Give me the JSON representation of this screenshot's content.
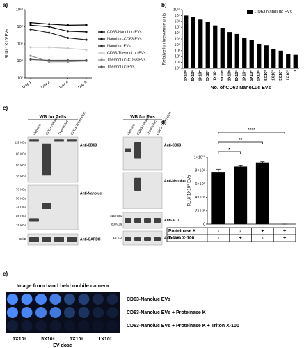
{
  "chart_data": [
    {
      "label": "a)",
      "type": "line",
      "y_label": "RLU/ 1X10⁸EVs",
      "log_scale": true,
      "ylim": [
        100,
        10000000000
      ],
      "yticks": [
        {
          "value": 100,
          "label": "10²"
        },
        {
          "value": 10000,
          "label": "10⁴"
        },
        {
          "value": 1000000,
          "label": "10⁶"
        },
        {
          "value": 100000000,
          "label": "10⁸"
        },
        {
          "value": 10000000000,
          "label": "10¹⁰"
        }
      ],
      "categories": [
        "Day 1",
        "Day 2",
        "Day 4",
        "Day 6"
      ],
      "series": [
        {
          "name": "CD63-NanoLuc EVs",
          "color": "#000000",
          "values": [
            300000000,
            200000000,
            150000000,
            160000000
          ]
        },
        {
          "name": "NanoLuc-CD63 EVs",
          "color": "#111111",
          "values": [
            150000000,
            100000000,
            30000000,
            25000000
          ]
        },
        {
          "name": "NanoLuc EVs",
          "color": "#222222",
          "values": [
            50000000,
            20000000,
            5000000,
            3000000
          ]
        },
        {
          "name": "CD63-ThermoLuc EVs",
          "color": "#c8c8c8",
          "values": [
            400000,
            400000,
            300000,
            200000
          ]
        },
        {
          "name": "ThermoLuc-CD63 EVs",
          "color": "#8c8c8c",
          "values": [
            40000,
            8000,
            8000,
            10000
          ]
        },
        {
          "name": "ThermoLuc EVs",
          "color": "#555555",
          "values": [
            15000,
            12000,
            12000,
            12000
          ]
        }
      ]
    },
    {
      "label": "b)",
      "type": "bar",
      "y_label": "Relative luminescence units",
      "x_label": "No. of CD63 NanoLuc EVs",
      "log_scale": true,
      "legend": "top-right",
      "ylim": [
        1,
        10000000000
      ],
      "yticks": [
        {
          "value": 1,
          "label": "10⁰"
        },
        {
          "value": 10,
          "label": "10¹"
        },
        {
          "value": 100,
          "label": "10²"
        },
        {
          "value": 1000,
          "label": "10³"
        },
        {
          "value": 10000,
          "label": "10⁴"
        },
        {
          "value": 100000,
          "label": "10⁵"
        },
        {
          "value": 1000000,
          "label": "10⁶"
        },
        {
          "value": 10000000,
          "label": "10⁷"
        },
        {
          "value": 100000000,
          "label": "10⁸"
        },
        {
          "value": 1000000000,
          "label": "10⁹"
        },
        {
          "value": 10000000000,
          "label": "10¹⁰"
        }
      ],
      "categories": [
        "1X10⁹",
        "5X10⁸",
        "1X10⁸",
        "5X10⁷",
        "1X10⁷",
        "5X10⁶",
        "1X10⁶",
        "5X10⁵",
        "1X10⁵",
        "5X10⁴",
        "1X10⁴",
        "5X10³",
        "1X10³",
        "5X10²",
        "1X10²",
        "0"
      ],
      "series": [
        {
          "name": "CD63 NanoLuc EVs",
          "color": "#000000",
          "values": [
            1000000000,
            600000000,
            200000000,
            80000000,
            20000000,
            8000000,
            1500000,
            700000,
            150000,
            70000,
            15000,
            8000,
            2000,
            1000,
            300,
            200
          ]
        }
      ]
    },
    {
      "label": "d)",
      "type": "bar",
      "y_label": "RLU/ 1X10⁸ EVs",
      "log_scale": false,
      "ylim": [
        0,
        10000000000
      ],
      "yticks": [
        0,
        {
          "value": 2000000000,
          "label": "2×10⁹"
        },
        {
          "value": 4000000000,
          "label": "4×10⁹"
        },
        {
          "value": 6000000000,
          "label": "6×10⁹"
        },
        {
          "value": 8000000000,
          "label": "8×10⁹"
        },
        {
          "value": 10000000000,
          "label": "1×10¹⁰"
        }
      ],
      "color": "#000000",
      "values": [
        7800000000,
        8600000000,
        9200000000,
        0
      ],
      "errors": [
        400000000,
        200000000,
        100000000,
        0
      ],
      "annotations": [
        "*",
        "**",
        "****"
      ],
      "table": [
        {
          "name": "Proteinase K",
          "cells": [
            "-",
            "-",
            "+",
            "+"
          ]
        },
        {
          "name": "Triton X-100",
          "cells": [
            "-",
            "+",
            "-",
            "+"
          ]
        }
      ]
    }
  ],
  "blots": {
    "label": "c)",
    "groups": [
      {
        "title": "WB for Cells",
        "lanes": [
          "Nanoluc",
          "CD63-Nanoluc",
          "Thermoluc",
          "CD63-Thermoluc"
        ],
        "panels": [
          {
            "antibody": "Anti-CD63",
            "markers": [
              "115 KDa",
              "80 KDa",
              "50 KDa",
              "30 KDa"
            ]
          },
          {
            "antibody": "Anti-Nanoluc",
            "markers": [
              "70 KDa",
              "50 KDa",
              "40 KDa",
              "25 KDa",
              "15 KDa"
            ]
          },
          {
            "antibody": "Anti-GAPDH",
            "markers": [
              "36kD"
            ]
          }
        ]
      },
      {
        "title": "WB for EVs",
        "lanes": [
          "Nanoluc",
          "CD63-Nanoluc",
          "Thermoluc",
          "CD63-Thermoluc"
        ],
        "panels": [
          {
            "antibody": "Anti-CD63",
            "markers": []
          },
          {
            "antibody": "Anti-Nanoluc",
            "markers": []
          },
          {
            "antibody": "Anti-ALIX",
            "markers": [
              "115 KDa",
              "80 KDa"
            ]
          },
          {
            "antibody": "Anti-CD81",
            "markers": [
              "15 KD"
            ]
          }
        ]
      }
    ]
  },
  "imaging": {
    "label": "e)",
    "title": "Image from hand held mobile camera",
    "rows": [
      "CD63-Nanoluc EVs",
      "CD63-Nanoluc EVs + Proteinase K",
      "CD63-Nanoluc EVs + Proteinase K + Triton X-100"
    ],
    "columns": [
      "1X10⁹",
      "5X10⁸",
      "1X10⁸",
      "1X10⁷"
    ],
    "x_label": "EV dose"
  }
}
